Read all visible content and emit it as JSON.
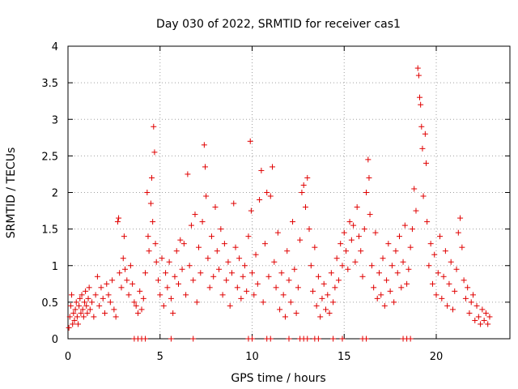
{
  "chart_data": {
    "type": "scatter",
    "title": "Day 030 of 2022, SRMTID for receiver cas1",
    "xlabel": "GPS time / hours",
    "ylabel": "SRMTID / TECUs",
    "xlim": [
      0,
      24
    ],
    "ylim": [
      0,
      4
    ],
    "xticks": [
      0,
      5,
      10,
      15,
      20
    ],
    "xtick_labels": [
      "0",
      "5",
      "10",
      "15",
      "20"
    ],
    "yticks": [
      0,
      0.5,
      1,
      1.5,
      2,
      2.5,
      3,
      3.5,
      4
    ],
    "ytick_labels": [
      "0",
      "0.5",
      "1",
      "1.5",
      "2",
      "2.5",
      "3",
      "3.5",
      "4"
    ],
    "grid": true,
    "marker": "+",
    "series": [
      {
        "name": "SRMTID",
        "color": "#e00000",
        "points": [
          [
            0.05,
            0.15
          ],
          [
            0.1,
            0.3
          ],
          [
            0.15,
            0.45
          ],
          [
            0.2,
            0.6
          ],
          [
            0.25,
            0.2
          ],
          [
            0.3,
            0.35
          ],
          [
            0.35,
            0.25
          ],
          [
            0.4,
            0.4
          ],
          [
            0.45,
            0.5
          ],
          [
            0.5,
            0.3
          ],
          [
            0.55,
            0.2
          ],
          [
            0.6,
            0.45
          ],
          [
            0.65,
            0.55
          ],
          [
            0.7,
            0.35
          ],
          [
            0.75,
            0.6
          ],
          [
            0.8,
            0.4
          ],
          [
            0.85,
            0.3
          ],
          [
            0.9,
            0.5
          ],
          [
            0.95,
            0.65
          ],
          [
            1.0,
            0.45
          ],
          [
            1.05,
            0.35
          ],
          [
            1.1,
            0.55
          ],
          [
            1.15,
            0.7
          ],
          [
            1.2,
            0.4
          ],
          [
            1.3,
            0.5
          ],
          [
            1.4,
            0.3
          ],
          [
            1.5,
            0.6
          ],
          [
            1.6,
            0.85
          ],
          [
            1.7,
            0.45
          ],
          [
            1.8,
            0.7
          ],
          [
            1.9,
            0.55
          ],
          [
            2.0,
            0.35
          ],
          [
            2.1,
            0.75
          ],
          [
            2.2,
            0.6
          ],
          [
            2.3,
            0.5
          ],
          [
            2.4,
            0.8
          ],
          [
            2.5,
            0.4
          ],
          [
            2.6,
            0.3
          ],
          [
            2.7,
            1.6
          ],
          [
            2.75,
            1.65
          ],
          [
            2.8,
            0.9
          ],
          [
            2.9,
            0.7
          ],
          [
            3.0,
            1.1
          ],
          [
            3.05,
            1.4
          ],
          [
            3.1,
            0.95
          ],
          [
            3.2,
            0.8
          ],
          [
            3.3,
            0.6
          ],
          [
            3.4,
            1.0
          ],
          [
            3.5,
            0.75
          ],
          [
            3.6,
            0.5
          ],
          [
            3.7,
            0.45
          ],
          [
            3.8,
            0.35
          ],
          [
            3.9,
            0.65
          ],
          [
            4.0,
            0.4
          ],
          [
            4.1,
            0.55
          ],
          [
            4.2,
            0.9
          ],
          [
            4.3,
            2.0
          ],
          [
            4.35,
            1.4
          ],
          [
            4.4,
            1.2
          ],
          [
            4.5,
            1.85
          ],
          [
            4.55,
            2.2
          ],
          [
            4.6,
            1.6
          ],
          [
            4.65,
            2.9
          ],
          [
            4.7,
            2.55
          ],
          [
            4.75,
            1.3
          ],
          [
            4.8,
            1.05
          ],
          [
            4.9,
            0.8
          ],
          [
            5.0,
            0.6
          ],
          [
            5.1,
            1.1
          ],
          [
            5.2,
            0.45
          ],
          [
            5.3,
            0.9
          ],
          [
            5.4,
            0.7
          ],
          [
            5.5,
            1.05
          ],
          [
            5.6,
            0.55
          ],
          [
            5.7,
            0.35
          ],
          [
            5.8,
            0.85
          ],
          [
            5.9,
            1.2
          ],
          [
            6.0,
            0.75
          ],
          [
            6.1,
            1.35
          ],
          [
            6.2,
            0.95
          ],
          [
            6.3,
            1.3
          ],
          [
            6.4,
            0.6
          ],
          [
            6.5,
            2.25
          ],
          [
            6.6,
            1.0
          ],
          [
            6.7,
            1.55
          ],
          [
            6.8,
            0.8
          ],
          [
            6.9,
            1.7
          ],
          [
            7.0,
            0.5
          ],
          [
            7.1,
            1.25
          ],
          [
            7.2,
            0.9
          ],
          [
            7.3,
            1.6
          ],
          [
            7.4,
            2.65
          ],
          [
            7.45,
            2.35
          ],
          [
            7.5,
            1.95
          ],
          [
            7.6,
            1.1
          ],
          [
            7.7,
            0.7
          ],
          [
            7.8,
            1.4
          ],
          [
            7.9,
            0.85
          ],
          [
            8.0,
            1.8
          ],
          [
            8.1,
            1.2
          ],
          [
            8.2,
            0.95
          ],
          [
            8.3,
            1.5
          ],
          [
            8.4,
            0.6
          ],
          [
            8.5,
            1.3
          ],
          [
            8.6,
            0.8
          ],
          [
            8.7,
            1.05
          ],
          [
            8.8,
            0.45
          ],
          [
            8.9,
            0.9
          ],
          [
            9.0,
            1.85
          ],
          [
            9.1,
            1.25
          ],
          [
            9.2,
            0.7
          ],
          [
            9.3,
            1.1
          ],
          [
            9.4,
            0.55
          ],
          [
            9.5,
            0.85
          ],
          [
            9.6,
            1.0
          ],
          [
            9.7,
            0.65
          ],
          [
            9.8,
            1.4
          ],
          [
            9.9,
            2.7
          ],
          [
            9.95,
            1.75
          ],
          [
            10.0,
            0.9
          ],
          [
            10.1,
            0.6
          ],
          [
            10.2,
            1.15
          ],
          [
            10.3,
            0.75
          ],
          [
            10.4,
            1.9
          ],
          [
            10.5,
            2.3
          ],
          [
            10.6,
            0.5
          ],
          [
            10.7,
            1.3
          ],
          [
            10.8,
            2.0
          ],
          [
            10.9,
            0.85
          ],
          [
            11.0,
            1.95
          ],
          [
            11.1,
            2.35
          ],
          [
            11.2,
            1.05
          ],
          [
            11.3,
            0.7
          ],
          [
            11.4,
            1.45
          ],
          [
            11.5,
            0.4
          ],
          [
            11.6,
            0.9
          ],
          [
            11.7,
            0.6
          ],
          [
            11.8,
            0.3
          ],
          [
            11.9,
            1.2
          ],
          [
            12.0,
            0.8
          ],
          [
            12.1,
            0.5
          ],
          [
            12.2,
            1.6
          ],
          [
            12.3,
            0.95
          ],
          [
            12.4,
            0.35
          ],
          [
            12.5,
            0.7
          ],
          [
            12.6,
            1.35
          ],
          [
            12.7,
            2.0
          ],
          [
            12.8,
            2.1
          ],
          [
            12.9,
            1.8
          ],
          [
            13.0,
            2.2
          ],
          [
            13.1,
            1.5
          ],
          [
            13.2,
            1.0
          ],
          [
            13.3,
            0.65
          ],
          [
            13.4,
            1.25
          ],
          [
            13.5,
            0.45
          ],
          [
            13.6,
            0.85
          ],
          [
            13.7,
            0.3
          ],
          [
            13.8,
            0.55
          ],
          [
            13.9,
            0.75
          ],
          [
            14.0,
            0.4
          ],
          [
            14.1,
            0.6
          ],
          [
            14.2,
            0.35
          ],
          [
            14.3,
            0.9
          ],
          [
            14.4,
            0.5
          ],
          [
            14.5,
            0.7
          ],
          [
            14.6,
            1.1
          ],
          [
            14.7,
            0.8
          ],
          [
            14.8,
            1.3
          ],
          [
            14.9,
            1.0
          ],
          [
            15.0,
            1.45
          ],
          [
            15.1,
            1.2
          ],
          [
            15.2,
            0.95
          ],
          [
            15.3,
            1.6
          ],
          [
            15.4,
            1.35
          ],
          [
            15.5,
            1.55
          ],
          [
            15.6,
            1.05
          ],
          [
            15.7,
            1.8
          ],
          [
            15.8,
            1.4
          ],
          [
            15.9,
            1.2
          ],
          [
            16.0,
            0.85
          ],
          [
            16.1,
            1.5
          ],
          [
            16.2,
            2.0
          ],
          [
            16.3,
            2.45
          ],
          [
            16.35,
            2.2
          ],
          [
            16.4,
            1.7
          ],
          [
            16.5,
            1.0
          ],
          [
            16.6,
            0.7
          ],
          [
            16.7,
            1.45
          ],
          [
            16.8,
            0.55
          ],
          [
            16.9,
            0.9
          ],
          [
            17.0,
            0.6
          ],
          [
            17.1,
            1.1
          ],
          [
            17.2,
            0.45
          ],
          [
            17.3,
            0.8
          ],
          [
            17.4,
            1.3
          ],
          [
            17.5,
            0.65
          ],
          [
            17.6,
            1.0
          ],
          [
            17.7,
            0.5
          ],
          [
            17.8,
            1.2
          ],
          [
            17.9,
            0.9
          ],
          [
            18.0,
            1.4
          ],
          [
            18.1,
            0.7
          ],
          [
            18.2,
            1.05
          ],
          [
            18.3,
            1.55
          ],
          [
            18.4,
            0.75
          ],
          [
            18.5,
            0.95
          ],
          [
            18.6,
            1.25
          ],
          [
            18.7,
            1.5
          ],
          [
            18.8,
            2.05
          ],
          [
            18.9,
            1.75
          ],
          [
            19.0,
            3.7
          ],
          [
            19.05,
            3.6
          ],
          [
            19.1,
            3.3
          ],
          [
            19.15,
            3.2
          ],
          [
            19.2,
            2.9
          ],
          [
            19.25,
            2.6
          ],
          [
            19.3,
            1.95
          ],
          [
            19.4,
            2.8
          ],
          [
            19.45,
            2.4
          ],
          [
            19.5,
            1.6
          ],
          [
            19.6,
            1.0
          ],
          [
            19.7,
            1.3
          ],
          [
            19.8,
            0.75
          ],
          [
            19.9,
            1.15
          ],
          [
            20.0,
            0.6
          ],
          [
            20.1,
            0.9
          ],
          [
            20.2,
            1.4
          ],
          [
            20.3,
            0.55
          ],
          [
            20.4,
            0.85
          ],
          [
            20.5,
            1.2
          ],
          [
            20.6,
            0.45
          ],
          [
            20.7,
            0.75
          ],
          [
            20.8,
            1.05
          ],
          [
            20.9,
            0.4
          ],
          [
            21.0,
            0.65
          ],
          [
            21.1,
            0.95
          ],
          [
            21.2,
            1.45
          ],
          [
            21.3,
            1.65
          ],
          [
            21.4,
            1.25
          ],
          [
            21.5,
            0.8
          ],
          [
            21.6,
            0.55
          ],
          [
            21.7,
            0.7
          ],
          [
            21.8,
            0.35
          ],
          [
            21.9,
            0.5
          ],
          [
            22.0,
            0.6
          ],
          [
            22.1,
            0.25
          ],
          [
            22.2,
            0.45
          ],
          [
            22.3,
            0.3
          ],
          [
            22.4,
            0.2
          ],
          [
            22.5,
            0.4
          ],
          [
            22.6,
            0.25
          ],
          [
            22.7,
            0.35
          ],
          [
            22.8,
            0.2
          ],
          [
            22.9,
            0.3
          ],
          [
            3.6,
            0.0
          ],
          [
            3.8,
            0.0
          ],
          [
            4.0,
            0.0
          ],
          [
            4.2,
            0.0
          ],
          [
            5.6,
            0.0
          ],
          [
            6.8,
            0.0
          ],
          [
            9.8,
            0.0
          ],
          [
            10.0,
            0.0
          ],
          [
            10.8,
            0.0
          ],
          [
            11.0,
            0.0
          ],
          [
            12.0,
            0.0
          ],
          [
            12.6,
            0.0
          ],
          [
            12.8,
            0.0
          ],
          [
            13.0,
            0.0
          ],
          [
            13.4,
            0.0
          ],
          [
            13.6,
            0.0
          ],
          [
            14.4,
            0.0
          ],
          [
            14.9,
            0.0
          ],
          [
            16.0,
            0.0
          ],
          [
            16.2,
            0.0
          ],
          [
            18.2,
            0.0
          ],
          [
            18.4,
            0.0
          ],
          [
            18.6,
            0.0
          ]
        ]
      }
    ]
  }
}
